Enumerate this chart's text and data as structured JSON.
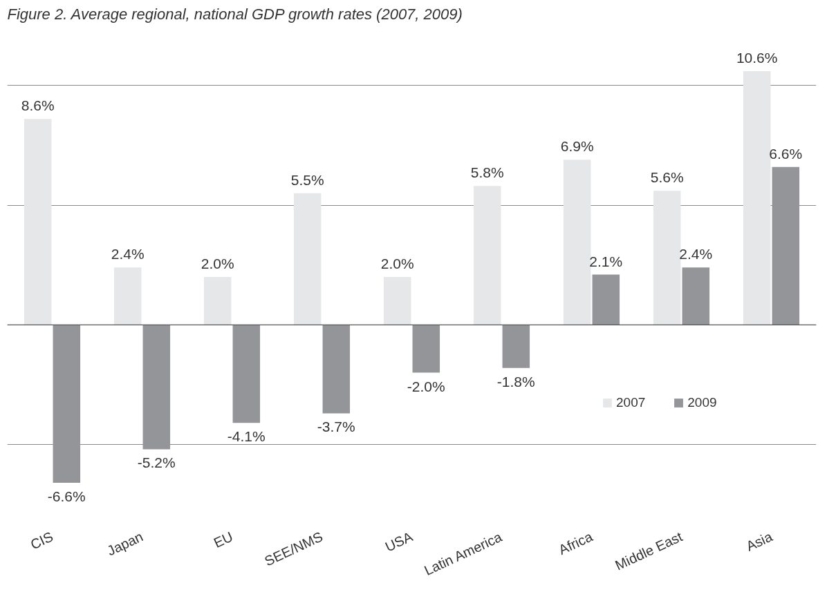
{
  "chart_data": {
    "type": "bar",
    "title": "Figure 2. Average regional, national GDP growth rates (2007, 2009)",
    "categories": [
      "CIS",
      "Japan",
      "EU",
      "SEE/NMS",
      "USA",
      "Latin America",
      "Africa",
      "Middle East",
      "Asia"
    ],
    "series": [
      {
        "name": "2007",
        "color": "#e6e7e8",
        "values": [
          8.6,
          2.4,
          2.0,
          5.5,
          2.0,
          5.8,
          6.9,
          5.6,
          10.6
        ],
        "value_labels": [
          "8.6%",
          "2.4%",
          "2.0%",
          "5.5%",
          "2.0%",
          "5.8%",
          "6.9%",
          "5.6%",
          "10.6%"
        ]
      },
      {
        "name": "2009",
        "color": "#939598",
        "values": [
          -6.6,
          -5.2,
          -4.1,
          -3.7,
          -2.0,
          -1.8,
          2.1,
          2.4,
          6.6
        ],
        "value_labels": [
          "-6.6%",
          "-5.2%",
          "-4.1%",
          "-3.7%",
          "-2.0%",
          "-1.8%",
          "2.1%",
          "2.4%",
          "6.6%"
        ]
      }
    ],
    "tick_labels": "x",
    "grid": "y",
    "legend": "right"
  }
}
